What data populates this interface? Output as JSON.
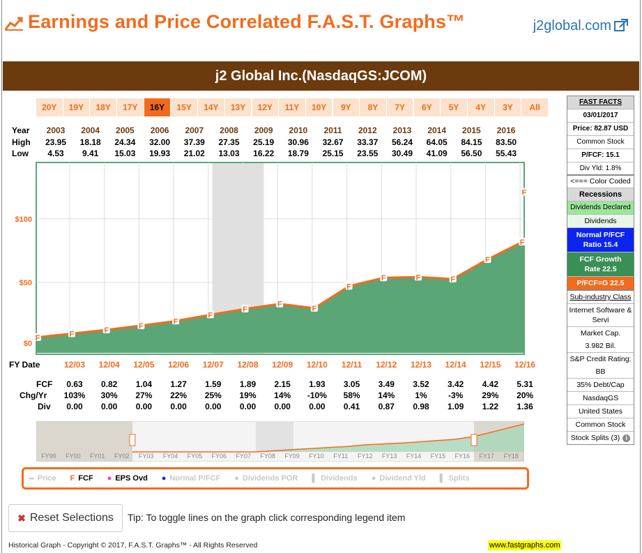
{
  "header": {
    "title": "Earnings and Price Correlated F.A.S.T. Graphs™",
    "brand_link": "j2global.com"
  },
  "banner": {
    "company": "j2 Global Inc.(NasdaqGS:JCOM)"
  },
  "range_buttons": [
    "20Y",
    "19Y",
    "18Y",
    "17Y",
    "16Y",
    "15Y",
    "14Y",
    "13Y",
    "12Y",
    "11Y",
    "10Y",
    "9Y",
    "8Y",
    "7Y",
    "6Y",
    "5Y",
    "4Y",
    "3Y",
    "All"
  ],
  "range_selected": "16Y",
  "price_table": {
    "labels": {
      "year": "Year",
      "high": "High",
      "low": "Low"
    },
    "years": [
      "2003",
      "2004",
      "2005",
      "2006",
      "2007",
      "2008",
      "2009",
      "2010",
      "2011",
      "2012",
      "2013",
      "2014",
      "2015",
      "2016"
    ],
    "high": [
      "23.95",
      "18.18",
      "24.34",
      "32.00",
      "37.39",
      "27.35",
      "25.19",
      "30.96",
      "32.67",
      "33.37",
      "56.24",
      "64.05",
      "84.15",
      "83.50"
    ],
    "low": [
      "4.53",
      "9.41",
      "15.03",
      "19.93",
      "21.02",
      "13.03",
      "16.22",
      "18.79",
      "25.15",
      "23.55",
      "30.49",
      "41.09",
      "56.50",
      "55.43"
    ]
  },
  "fy_table": {
    "labels": {
      "date": "FY Date",
      "fcf": "FCF",
      "chg": "Chg/Yr",
      "div": "Div"
    },
    "dates": [
      "12/03",
      "12/04",
      "12/05",
      "12/06",
      "12/07",
      "12/08",
      "12/09",
      "12/10",
      "12/11",
      "12/12",
      "12/13",
      "12/14",
      "12/15",
      "12/16"
    ],
    "fcf": [
      "0.63",
      "0.82",
      "1.04",
      "1.27",
      "1.59",
      "1.89",
      "2.15",
      "1.93",
      "3.05",
      "3.49",
      "3.52",
      "3.42",
      "4.42",
      "5.31"
    ],
    "chg": [
      "103%",
      "30%",
      "27%",
      "22%",
      "25%",
      "19%",
      "14%",
      "-10%",
      "58%",
      "14%",
      "1%",
      "-3%",
      "29%",
      "20%"
    ],
    "div": [
      "0.00",
      "0.00",
      "0.00",
      "0.00",
      "0.00",
      "0.00",
      "0.00",
      "0.00",
      "0.41",
      "0.87",
      "0.98",
      "1.09",
      "1.22",
      "1.36"
    ]
  },
  "chart_data": {
    "type": "area",
    "x": [
      "12/03",
      "12/04",
      "12/05",
      "12/06",
      "12/07",
      "12/08",
      "12/09",
      "12/10",
      "12/11",
      "12/12",
      "12/13",
      "12/14",
      "12/15",
      "12/16"
    ],
    "series": [
      {
        "name": "FCF",
        "values": [
          9.7,
          12.6,
          16.0,
          19.6,
          24.5,
          29.1,
          33.1,
          29.7,
          47.0,
          53.7,
          54.2,
          52.7,
          68.1,
          81.8
        ]
      }
    ],
    "yticks": [
      "$0",
      "$50",
      "$100"
    ],
    "ylim": [
      0,
      140
    ],
    "shaded_region": [
      2008.0,
      2009.5
    ],
    "colors": {
      "area": "#5aa677",
      "line": "#f26b1d",
      "recession": "#e0e0e0"
    }
  },
  "overview": {
    "labels": [
      "FY99",
      "FY00",
      "FY01",
      "FY02",
      "FY03",
      "FY04",
      "FY05",
      "FY06",
      "FY07",
      "FY08",
      "FY09",
      "FY10",
      "FY11",
      "FY12",
      "FY13",
      "FY14",
      "FY15",
      "FY16",
      "FY17",
      "FY18"
    ]
  },
  "fast_facts": {
    "title": "FAST FACTS",
    "date": "03/01/2017",
    "price": "Price: 82.87 USD",
    "stock_type": "Common Stock",
    "pfcf": "P/FCF: 15.1",
    "div_yld": "Div Yld: 1.8%"
  },
  "color_legend": {
    "hint": "<=== Color Coded",
    "recessions": "Recessions",
    "dividends_declared": "Dividends Declared",
    "dividends": "Dividends",
    "normal_pfcf": "Normal P/FCF Ratio 15.4",
    "fcf_growth": "FCF Growth Rate 22.5",
    "pfcf_g": "P/FCF=G 22.5",
    "colors": {
      "recession": "#d9d9d9",
      "div_declared": "#9ce69c",
      "dividends": "#e8f7e8",
      "normal": "#0b24f0",
      "growth": "#3a8f57",
      "pfcfg": "#f26b1d"
    }
  },
  "classification": {
    "title": "Sub-industry Class",
    "industry": "Internet Software & Servi",
    "mcap_label": "Market Cap.",
    "mcap": "3.982 Bil.",
    "credit_label": "S&P Credit Rating:",
    "credit": "BB",
    "debt": "35% Debt/Cap",
    "exchange": "NasdaqGS",
    "country": "United States",
    "stock_type": "Common Stock",
    "splits": "Stock Splits (3)"
  },
  "legend": {
    "price": "Price",
    "fcf": "FCF",
    "eps_ovd": "EPS Ovd",
    "normal_pfcf": "Normal P/FCF",
    "div_por": "Dividends POR",
    "dividends": "Dividends",
    "div_yld": "Dividend Yld",
    "splits": "Splits"
  },
  "controls": {
    "reset": "Reset Selections",
    "tip": "Tip: To toggle lines on the graph click corresponding legend item"
  },
  "footer": {
    "copyright": "Historical Graph - Copyright © 2017, F.A.S.T. Graphs™ - All Rights Reserved",
    "link": "www.fastgraphs.com"
  }
}
